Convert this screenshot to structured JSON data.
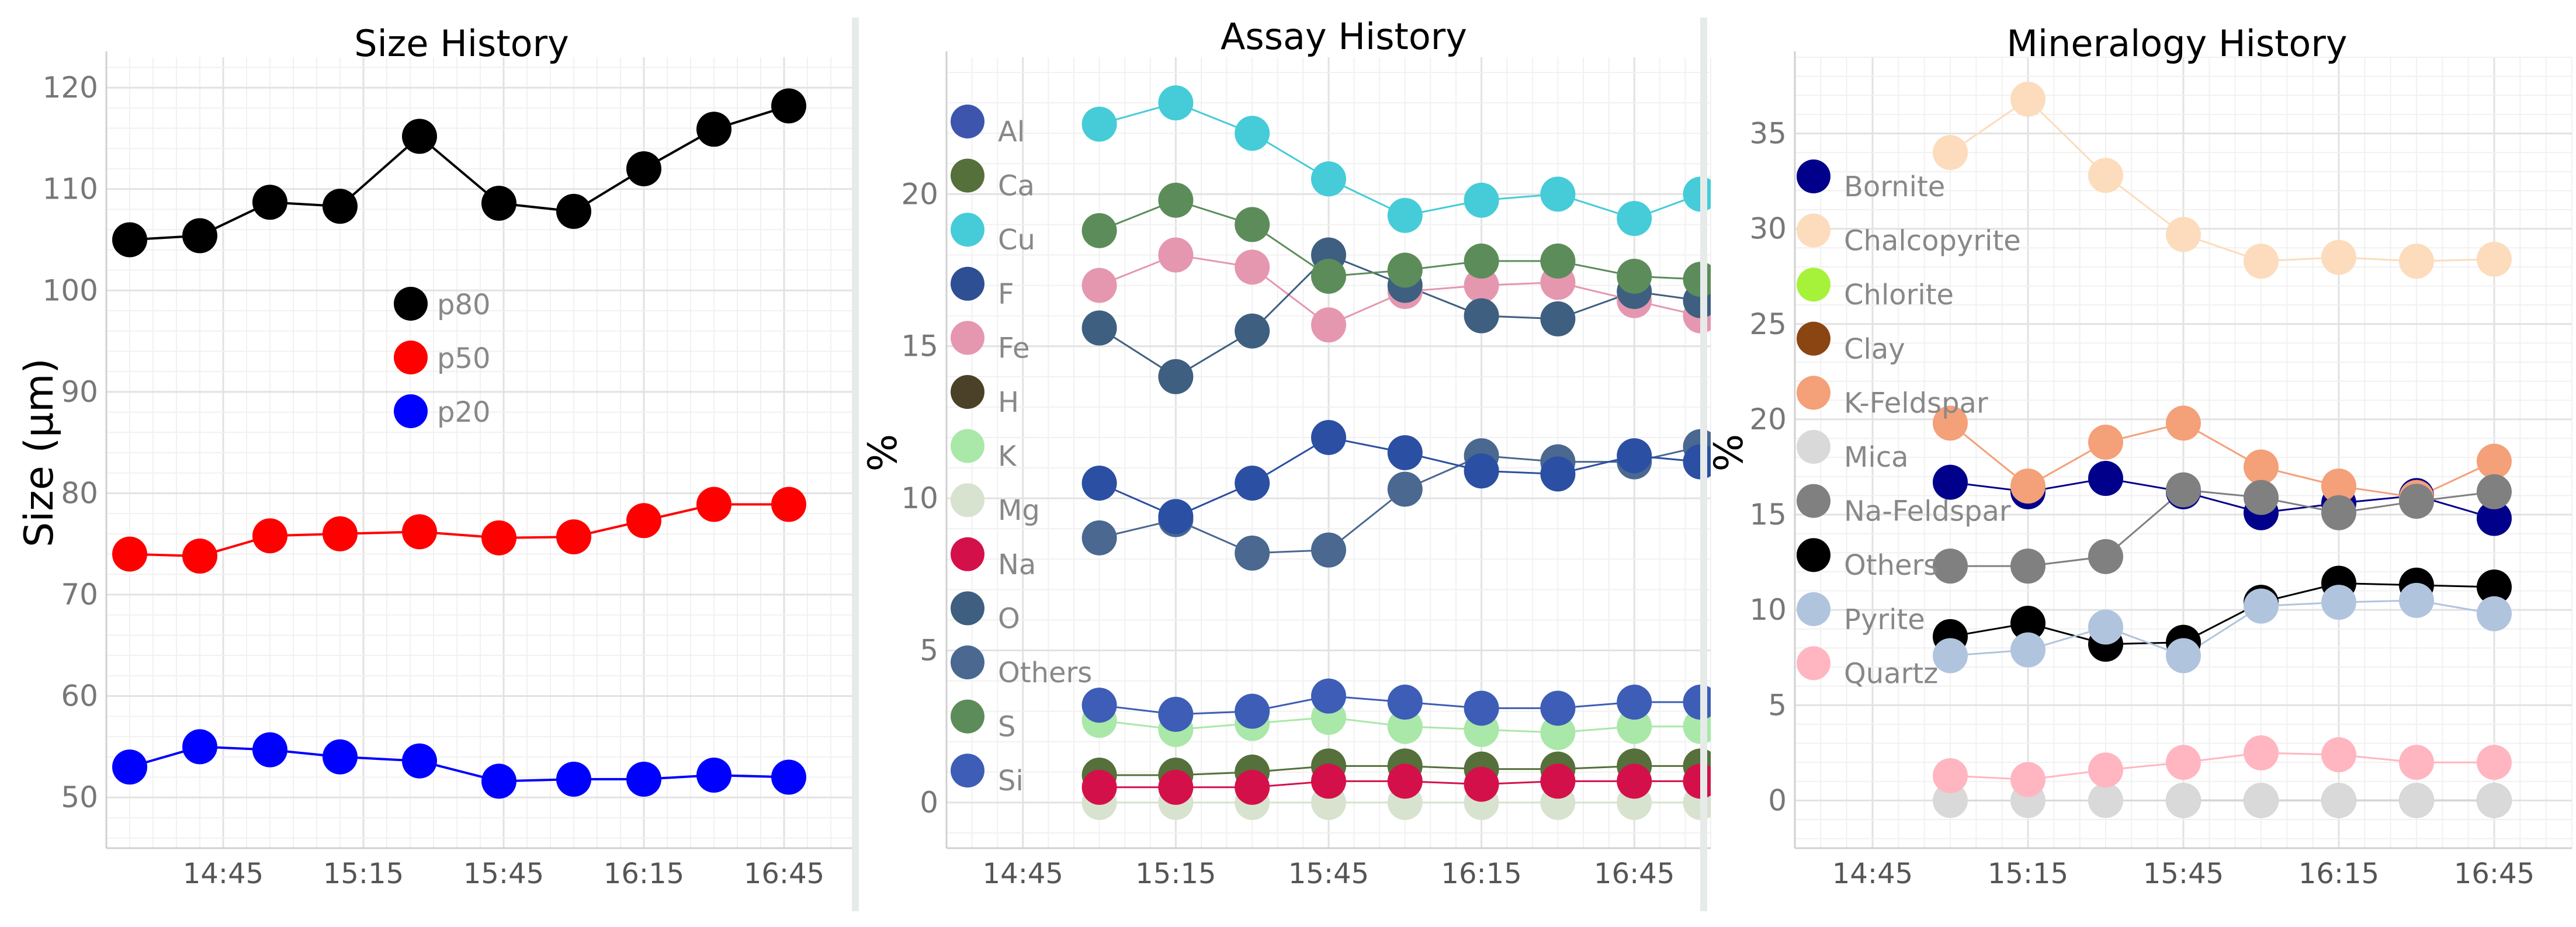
{
  "chart_data": [
    {
      "type": "line",
      "title": "Size History",
      "xlabel": "",
      "ylabel": "Size (µm)",
      "x_tick_labels": [
        "14:45",
        "15:15",
        "15:45",
        "16:15",
        "16:45"
      ],
      "ylim": [
        45,
        123
      ],
      "y_ticks": [
        50,
        60,
        70,
        80,
        90,
        100,
        110,
        120
      ],
      "grid": true,
      "legend_position": "inside-middle",
      "x": [
        "14:25",
        "14:40",
        "14:55",
        "15:10",
        "15:27",
        "15:44",
        "16:00",
        "16:15",
        "16:30",
        "16:46"
      ],
      "series": [
        {
          "name": "p80",
          "color": "#000000",
          "values": [
            105,
            105.4,
            108.7,
            108.3,
            115.2,
            108.6,
            107.8,
            112,
            115.9,
            118.2
          ]
        },
        {
          "name": "p50",
          "color": "#ff0000",
          "values": [
            74,
            73.8,
            75.8,
            76,
            76.2,
            75.6,
            75.7,
            77.3,
            78.9,
            78.9
          ]
        },
        {
          "name": "p20",
          "color": "#0000ff",
          "values": [
            53,
            55,
            54.7,
            54,
            53.6,
            51.6,
            51.8,
            51.8,
            52.2,
            52
          ]
        }
      ]
    },
    {
      "type": "line",
      "title": "Assay History",
      "xlabel": "",
      "ylabel": "%",
      "x_tick_labels": [
        "14:45",
        "15:15",
        "15:45",
        "16:15",
        "16:45"
      ],
      "ylim": [
        -1.5,
        24.5
      ],
      "y_ticks": [
        0,
        5,
        10,
        15,
        20
      ],
      "grid": true,
      "legend_position": "left-inside",
      "x": [
        "15:00",
        "15:15",
        "15:30",
        "15:45",
        "16:00",
        "16:15",
        "16:30",
        "16:45",
        "16:58"
      ],
      "series": [
        {
          "name": "Al",
          "color": "#3e55ad",
          "values": [
            null,
            null,
            null,
            null,
            null,
            null,
            null,
            null,
            null
          ]
        },
        {
          "name": "Ca",
          "color": "#55703a",
          "values": [
            0.9,
            0.9,
            1.0,
            1.2,
            1.2,
            1.1,
            1.1,
            1.2,
            1.2
          ]
        },
        {
          "name": "Cu",
          "color": "#45ccd8",
          "values": [
            22.3,
            23.0,
            22.0,
            20.5,
            19.3,
            19.8,
            20.0,
            19.2,
            20.0
          ]
        },
        {
          "name": "F",
          "color": "#2e4f93",
          "values": [
            null,
            null,
            null,
            null,
            null,
            null,
            null,
            null,
            null
          ]
        },
        {
          "name": "Fe",
          "color": "#e597b0",
          "values": [
            17.0,
            18.0,
            17.6,
            15.7,
            16.8,
            17.0,
            17.1,
            16.5,
            16.0
          ]
        },
        {
          "name": "H",
          "color": "#4a4128",
          "values": [
            null,
            null,
            null,
            null,
            null,
            null,
            null,
            null,
            null
          ]
        },
        {
          "name": "K",
          "color": "#a9e8a8",
          "values": [
            2.7,
            2.4,
            2.6,
            2.8,
            2.5,
            2.4,
            2.3,
            2.5,
            2.5
          ]
        },
        {
          "name": "Mg",
          "color": "#d8e3cf",
          "values": [
            0.0,
            0.0,
            0.0,
            0.0,
            0.0,
            0.0,
            0.0,
            0.0,
            0.0
          ]
        },
        {
          "name": "Na",
          "color": "#d4104b",
          "values": [
            0.5,
            0.5,
            0.5,
            0.7,
            0.7,
            0.6,
            0.7,
            0.7,
            0.7
          ]
        },
        {
          "name": "O",
          "color": "#3e5f80",
          "values": [
            15.6,
            14.0,
            15.5,
            18.0,
            17.0,
            16.0,
            15.9,
            16.8,
            16.5
          ]
        },
        {
          "name": "Others",
          "color": "#4a6890",
          "values": [
            8.7,
            9.3,
            8.2,
            8.3,
            10.3,
            11.4,
            11.2,
            11.2,
            11.7
          ]
        },
        {
          "name": "S",
          "color": "#5c8c5a",
          "values": [
            18.8,
            19.8,
            19.0,
            17.3,
            17.5,
            17.8,
            17.8,
            17.3,
            17.2
          ]
        },
        {
          "name": "Si",
          "color": "#3d5db7",
          "values": [
            3.2,
            2.9,
            3.0,
            3.5,
            3.3,
            3.1,
            3.1,
            3.3,
            3.3
          ]
        },
        {
          "name": "",
          "color": "#2b4fa3",
          "values": [
            10.5,
            9.4,
            10.5,
            12.0,
            11.5,
            10.9,
            10.8,
            11.4,
            11.2
          ]
        }
      ]
    },
    {
      "type": "line",
      "title": "Mineralogy History",
      "xlabel": "",
      "ylabel": "%",
      "x_tick_labels": [
        "14:45",
        "15:15",
        "15:45",
        "16:15",
        "16:45"
      ],
      "ylim": [
        -2.5,
        39
      ],
      "y_ticks": [
        0,
        5,
        10,
        15,
        20,
        25,
        30,
        35
      ],
      "grid": true,
      "legend_position": "left-inside",
      "x": [
        "15:00",
        "15:15",
        "15:30",
        "15:45",
        "16:00",
        "16:15",
        "16:30",
        "16:45"
      ],
      "series": [
        {
          "name": "Bornite",
          "color": "#00008b",
          "values": [
            16.7,
            16.2,
            16.9,
            16.2,
            15.1,
            15.6,
            16.0,
            14.8
          ]
        },
        {
          "name": "Chalcopyrite",
          "color": "#fcdcbc",
          "values": [
            34.0,
            36.8,
            32.8,
            29.7,
            28.3,
            28.5,
            28.3,
            28.4
          ]
        },
        {
          "name": "Chlorite",
          "color": "#a6f23a",
          "values": [
            null,
            null,
            null,
            null,
            null,
            null,
            null,
            null
          ]
        },
        {
          "name": "Clay",
          "color": "#8b4513",
          "values": [
            null,
            null,
            null,
            0.0,
            0.0,
            0.0,
            0.0,
            0.0
          ]
        },
        {
          "name": "K-Feldspar",
          "color": "#f4a078",
          "values": [
            19.8,
            16.5,
            18.8,
            19.8,
            17.5,
            16.5,
            15.9,
            17.8
          ]
        },
        {
          "name": "Mica",
          "color": "#d9d9d9",
          "values": [
            0.0,
            0.0,
            0.0,
            0.0,
            0.0,
            0.0,
            0.0,
            0.0
          ]
        },
        {
          "name": "Na-Feldspar",
          "color": "#808080",
          "values": [
            12.3,
            12.3,
            12.8,
            16.3,
            15.9,
            15.1,
            15.7,
            16.2
          ]
        },
        {
          "name": "Others",
          "color": "#000000",
          "values": [
            8.6,
            9.3,
            8.2,
            8.3,
            10.4,
            11.4,
            11.3,
            11.2
          ]
        },
        {
          "name": "Pyrite",
          "color": "#b0c4de",
          "values": [
            7.6,
            7.9,
            9.1,
            7.6,
            10.2,
            10.4,
            10.5,
            9.8
          ]
        },
        {
          "name": "Quartz",
          "color": "#ffb6c1",
          "values": [
            1.3,
            1.1,
            1.6,
            2.0,
            2.5,
            2.4,
            2.0,
            2.0
          ]
        }
      ]
    }
  ]
}
